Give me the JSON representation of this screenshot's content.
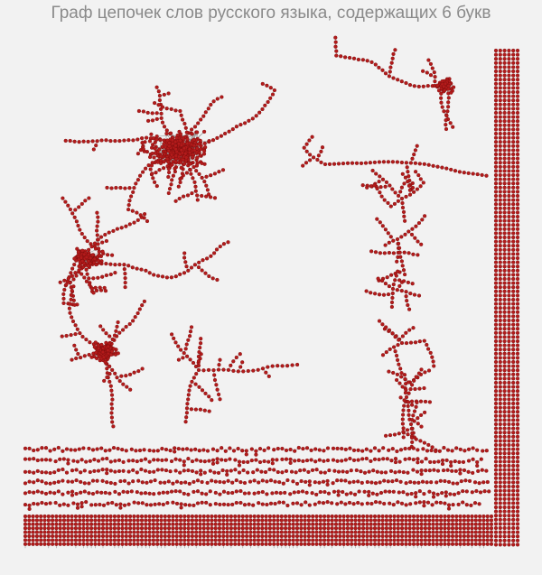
{
  "title": "Граф цепочек слов русского языка, содержащих 6 букв"
}
